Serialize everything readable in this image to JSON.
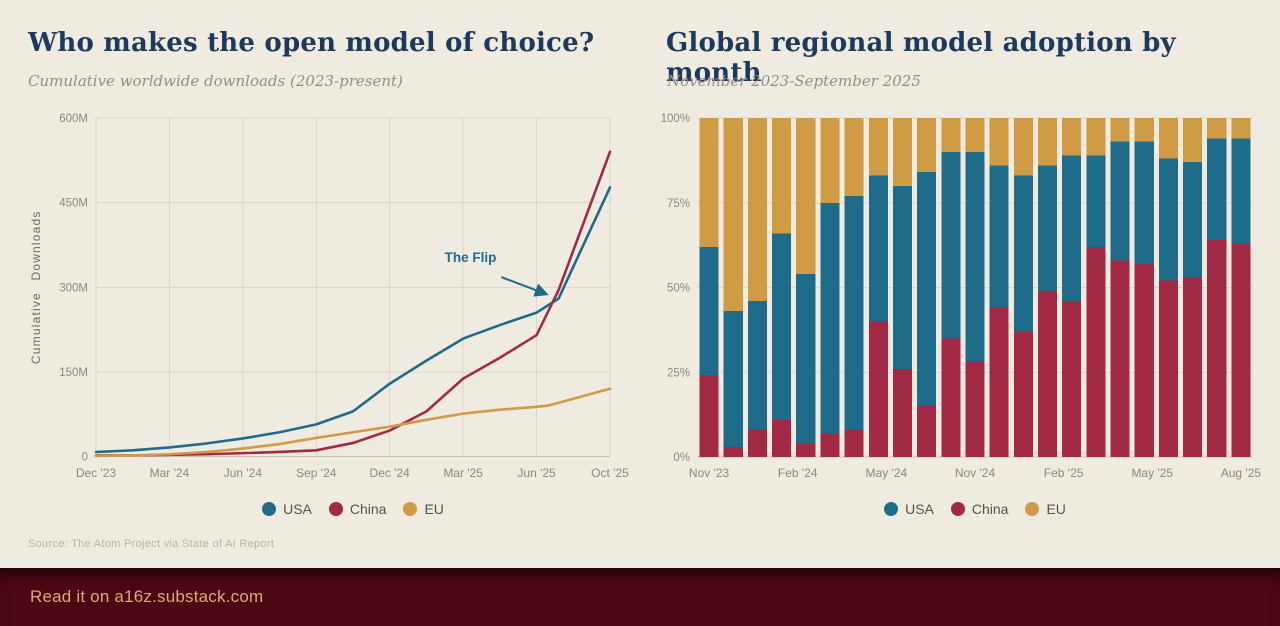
{
  "page": {
    "background": "#f0ebe1",
    "source_note": "Source: The Atom Project via State of AI Report",
    "footer": {
      "text": "Read it on a16z.substack.com",
      "bg": "#4b0713",
      "text_color": "#d9ad72"
    }
  },
  "left_panel": {
    "title": "Who makes the open model of choice?",
    "subtitle": "Cumulative worldwide downloads (2023-present)"
  },
  "right_panel": {
    "title": "Global regional model adoption by month",
    "subtitle": "November 2023-September 2025"
  },
  "colors": {
    "usa": "#1f6b8a",
    "china": "#a32a47",
    "eu": "#cf9b44",
    "title_navy": "#1d3a5c",
    "grid": "#ded7c9",
    "axis_line": "#c9c3b5",
    "axis_text": "#8c887e",
    "legend_text": "#56524a"
  },
  "chart_data": [
    {
      "type": "line",
      "title": "Who makes the open model of choice?",
      "subtitle": "Cumulative worldwide downloads (2023-present)",
      "ylabel": "Cumulative Downloads",
      "unit": "millions of downloads",
      "ylim": [
        0,
        600
      ],
      "y_tick_values": [
        0,
        150,
        300,
        450,
        600
      ],
      "y_tick_labels": [
        "0",
        "150M",
        "300M",
        "450M",
        "600M"
      ],
      "x_tick_labels": [
        "Dec '23",
        "Mar '24",
        "Jun '24",
        "Sep '24",
        "Dec '24",
        "Mar '25",
        "Jun '25",
        "Oct '25"
      ],
      "grid": true,
      "legend": [
        "USA",
        "China",
        "EU"
      ],
      "legend_position": "bottom",
      "series": [
        {
          "name": "USA",
          "color": "#1f6b8a",
          "x": [
            0,
            0.5,
            1,
            1.5,
            2,
            2.5,
            3,
            3.5,
            4,
            4.5,
            5,
            5.5,
            6,
            6.3,
            7
          ],
          "values": [
            8,
            11,
            16,
            23,
            32,
            43,
            57,
            80,
            129,
            170,
            209,
            233,
            255,
            280,
            477
          ]
        },
        {
          "name": "China",
          "color": "#a32a47",
          "x": [
            0,
            0.5,
            1,
            1.5,
            2,
            2.5,
            3,
            3.5,
            4,
            4.5,
            5,
            5.5,
            6,
            6.3,
            7
          ],
          "values": [
            2,
            2,
            3,
            4,
            6,
            8,
            11,
            24,
            46,
            80,
            138,
            175,
            215,
            295,
            540
          ]
        },
        {
          "name": "EU",
          "color": "#cf9b44",
          "x": [
            0,
            0.5,
            1,
            1.5,
            2,
            2.5,
            3,
            3.5,
            4,
            4.5,
            5,
            5.5,
            6,
            6.15,
            7
          ],
          "values": [
            1,
            2,
            4,
            8,
            14,
            22,
            33,
            43,
            53,
            65,
            76,
            83,
            88,
            90,
            120
          ]
        }
      ],
      "annotation": {
        "text": "The Flip",
        "text_x": 5.1,
        "text_y": 345,
        "arrow_from_x": 5.52,
        "arrow_from_y": 318,
        "arrow_to_x": 6.13,
        "arrow_to_y": 288
      }
    },
    {
      "type": "stacked-bar-100",
      "title": "Global regional model adoption by month",
      "subtitle": "November 2023-September 2025",
      "ylim": [
        0,
        100
      ],
      "y_tick_values": [
        0,
        25,
        50,
        75,
        100
      ],
      "y_tick_labels": [
        "0%",
        "25%",
        "50%",
        "75%",
        "100%"
      ],
      "categories": [
        "Nov '23",
        "Dec '23",
        "Jan '24",
        "Feb '24",
        "Mar '24",
        "Apr '24",
        "May '24",
        "Jun '24",
        "Jul '24",
        "Aug '24",
        "Sep '24",
        "Oct '24",
        "Nov '24",
        "Dec '24",
        "Jan '25",
        "Feb '25",
        "Mar '25",
        "Apr '25",
        "May '25",
        "Jun '25",
        "Jul '25",
        "Aug '25",
        "Sep '25"
      ],
      "x_tick_labels": [
        "Nov '23",
        "Feb '24",
        "May '24",
        "Nov '24",
        "Feb '25",
        "May '25",
        "Aug '25"
      ],
      "grid": true,
      "legend": [
        "USA",
        "China",
        "EU"
      ],
      "legend_position": "bottom",
      "stack_order_bottom_to_top": [
        "China",
        "USA",
        "EU"
      ],
      "series": [
        {
          "name": "China",
          "color": "#a32a47",
          "values": [
            24,
            3,
            8,
            11,
            4,
            7,
            8,
            40,
            26,
            15,
            35,
            28,
            44,
            37,
            49,
            46,
            62,
            58,
            57,
            52,
            53,
            64,
            63
          ]
        },
        {
          "name": "USA",
          "color": "#1f6b8a",
          "values": [
            38,
            40,
            38,
            55,
            50,
            68,
            69,
            43,
            54,
            69,
            55,
            62,
            42,
            46,
            37,
            43,
            27,
            35,
            36,
            36,
            34,
            30,
            31
          ]
        },
        {
          "name": "EU",
          "color": "#cf9b44",
          "values": [
            38,
            57,
            54,
            34,
            46,
            25,
            23,
            17,
            20,
            16,
            10,
            10,
            14,
            17,
            14,
            11,
            11,
            7,
            7,
            12,
            13,
            6,
            6
          ]
        }
      ]
    }
  ]
}
